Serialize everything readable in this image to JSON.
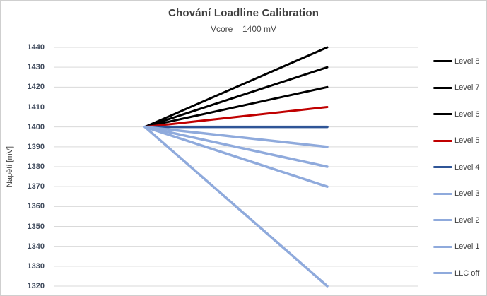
{
  "chart_data": {
    "type": "line",
    "title": "Chování Loadline Calibration",
    "subtitle": "Vcore = 1400 mV",
    "ylabel": "Napětí [mV]",
    "xlabel": "",
    "x_tick_labels_visible": false,
    "points_per_series": 2,
    "ylim": [
      1320,
      1440
    ],
    "yticks": [
      1440,
      1430,
      1420,
      1410,
      1400,
      1390,
      1380,
      1370,
      1360,
      1350,
      1340,
      1330,
      1320
    ],
    "grid": true,
    "gridline_color": "#d9d9d9",
    "legend_position": "right",
    "series": [
      {
        "name": "Level 8",
        "values": [
          1400,
          1440
        ],
        "color": "#000000",
        "width": 3
      },
      {
        "name": "Level 7",
        "values": [
          1400,
          1430
        ],
        "color": "#000000",
        "width": 3
      },
      {
        "name": "Level 6",
        "values": [
          1400,
          1420
        ],
        "color": "#000000",
        "width": 3
      },
      {
        "name": "Level 5",
        "values": [
          1400,
          1410
        ],
        "color": "#c00000",
        "width": 3
      },
      {
        "name": "Level 4",
        "values": [
          1400,
          1400
        ],
        "color": "#2f5597",
        "width": 3.5
      },
      {
        "name": "Level 3",
        "values": [
          1400,
          1390
        ],
        "color": "#8faadc",
        "width": 3.5
      },
      {
        "name": "Level 2",
        "values": [
          1400,
          1380
        ],
        "color": "#8faadc",
        "width": 3.5
      },
      {
        "name": "Level 1",
        "values": [
          1400,
          1370
        ],
        "color": "#8faadc",
        "width": 3.5
      },
      {
        "name": "LLC off",
        "values": [
          1400,
          1320
        ],
        "color": "#8faadc",
        "width": 3.5
      }
    ]
  }
}
